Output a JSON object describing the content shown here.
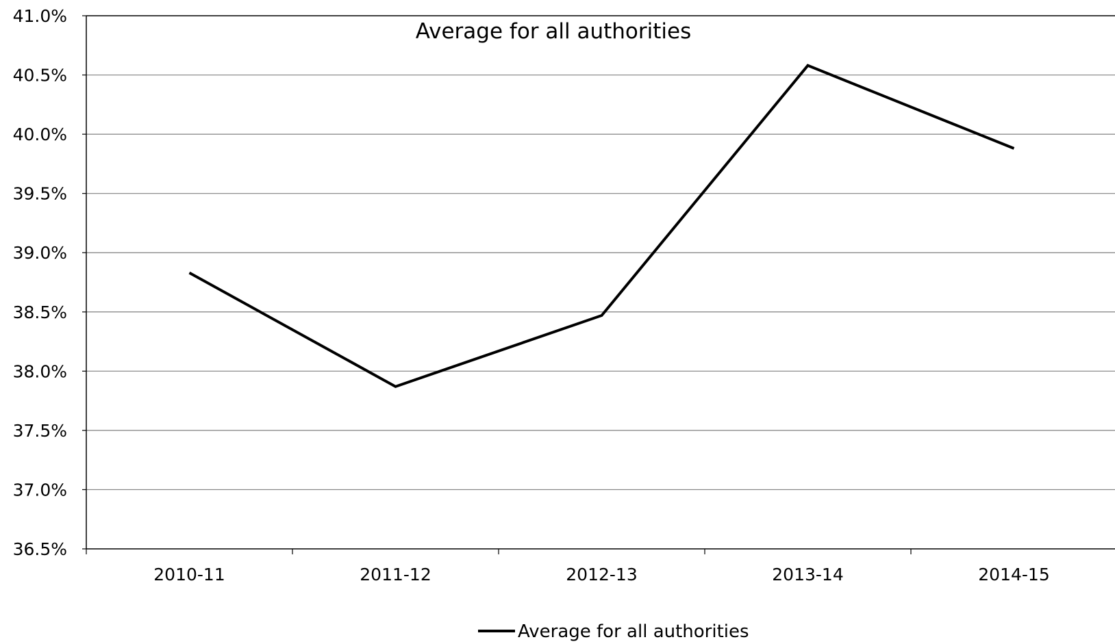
{
  "chart_data": {
    "type": "line",
    "title": "Average for all authorities",
    "xlabel": "",
    "ylabel": "",
    "categories": [
      "2010-11",
      "2011-12",
      "2012-13",
      "2013-14",
      "2014-15"
    ],
    "series": [
      {
        "name": "Average for all authorities",
        "values": [
          0.3883,
          0.3787,
          0.3847,
          0.4058,
          0.3988
        ],
        "color": "#000000"
      }
    ],
    "ylim": [
      0.365,
      0.41
    ],
    "y_ticks": [
      0.365,
      0.37,
      0.375,
      0.38,
      0.385,
      0.39,
      0.395,
      0.4,
      0.405,
      0.41
    ],
    "y_tick_labels": [
      "36.5%",
      "37.0%",
      "37.5%",
      "38.0%",
      "38.5%",
      "39.0%",
      "39.5%",
      "40.0%",
      "40.5%",
      "41.0%"
    ],
    "grid": true,
    "legend": {
      "position": "bottom",
      "entries": [
        "Average for all authorities"
      ]
    }
  }
}
